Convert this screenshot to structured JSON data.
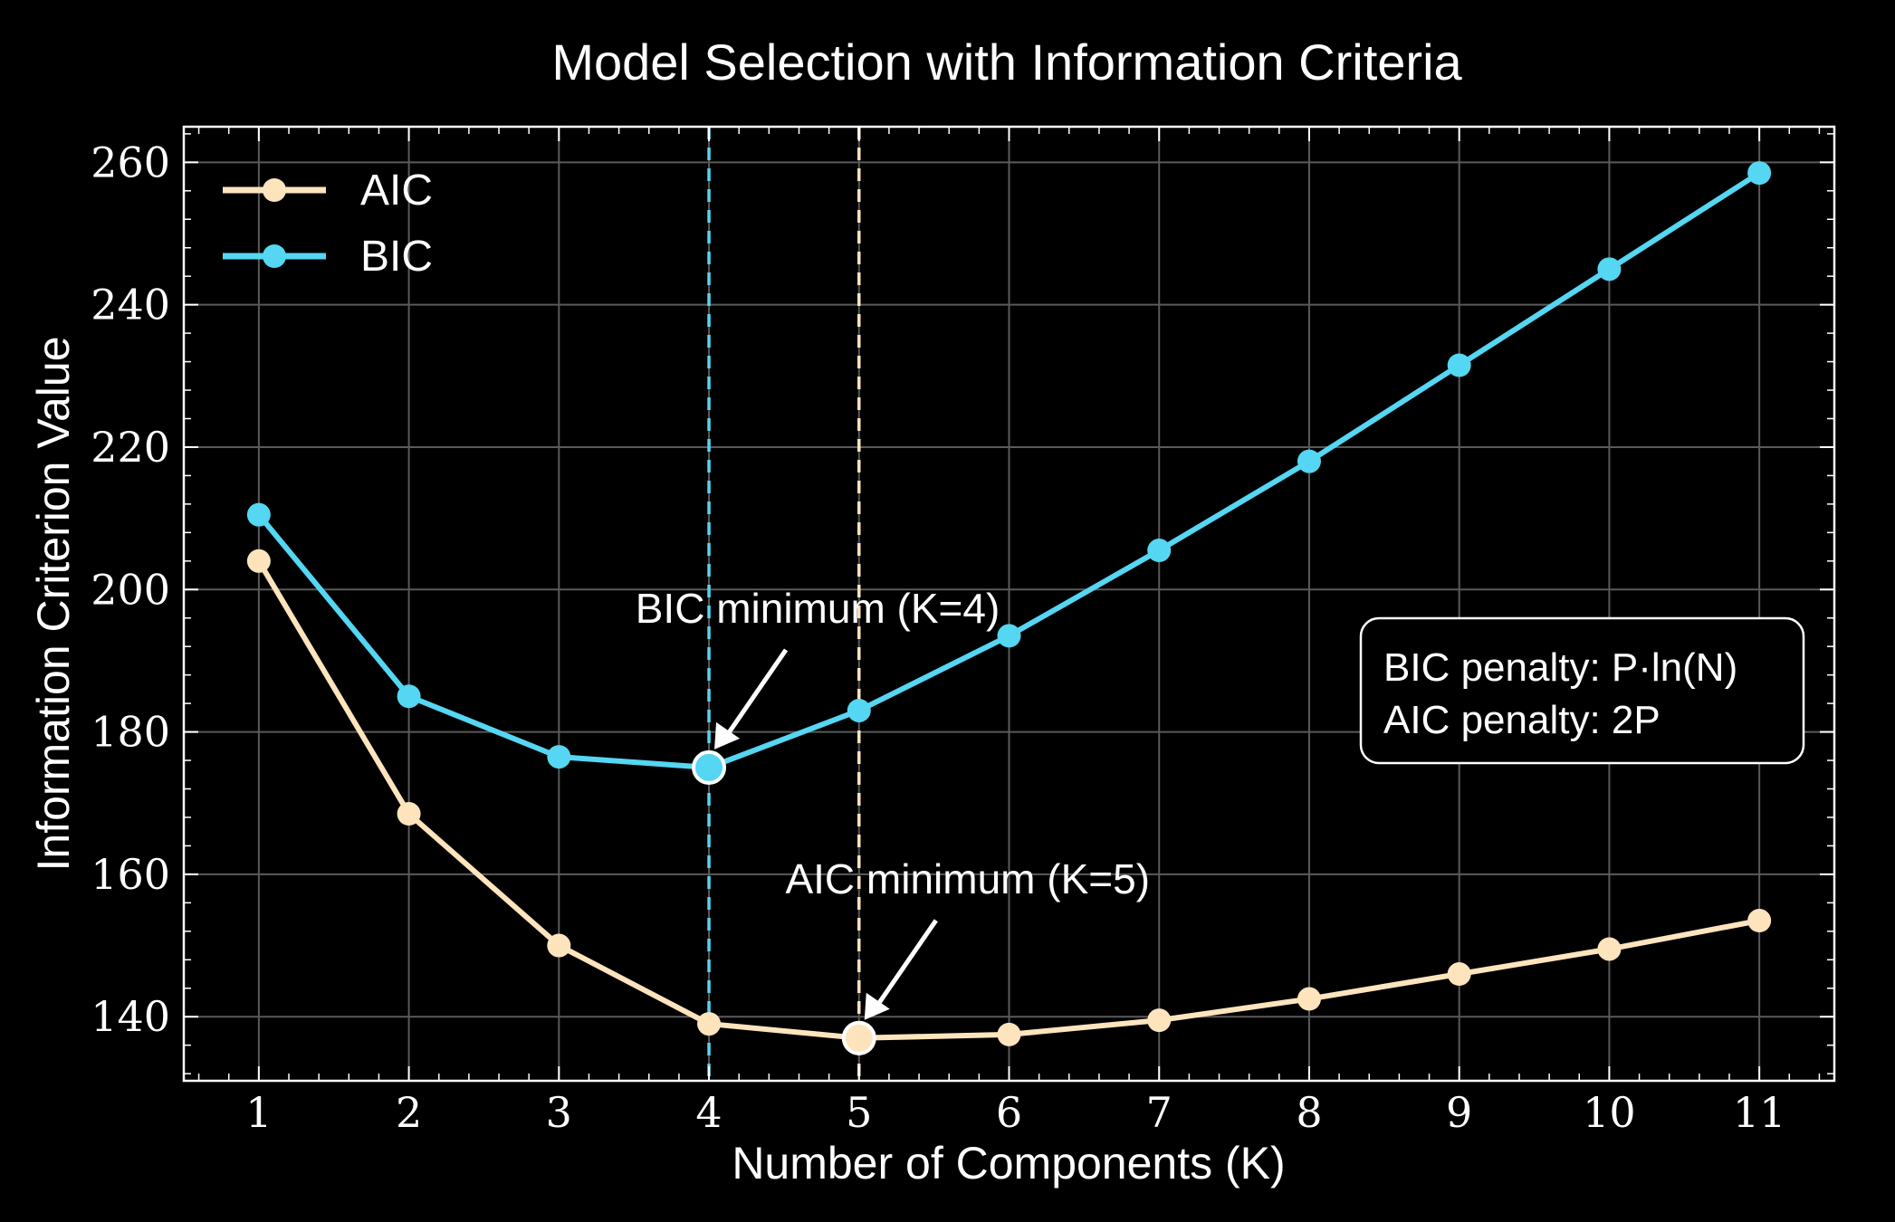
{
  "chart_data": {
    "type": "line",
    "title": "Model Selection with Information Criteria",
    "xlabel": "Number of Components (K)",
    "ylabel": "Information Criterion Value",
    "x": [
      1,
      2,
      3,
      4,
      5,
      6,
      7,
      8,
      9,
      10,
      11
    ],
    "x_tick_labels": [
      "1",
      "2",
      "3",
      "4",
      "5",
      "6",
      "7",
      "8",
      "9",
      "10",
      "11"
    ],
    "y_ticks": [
      140,
      160,
      180,
      200,
      220,
      240,
      260
    ],
    "y_tick_labels": [
      "140",
      "160",
      "180",
      "200",
      "220",
      "240",
      "260"
    ],
    "xlim": [
      0.5,
      11.5
    ],
    "ylim": [
      131,
      265
    ],
    "grid": true,
    "legend_position": "top-left",
    "series": [
      {
        "name": "AIC",
        "color": "#fde4bd",
        "values": [
          204,
          168.5,
          150,
          139,
          137,
          137.5,
          139.5,
          142.5,
          146,
          149.5,
          153.5
        ]
      },
      {
        "name": "BIC",
        "color": "#55d6f2",
        "values": [
          210.5,
          185,
          176.5,
          175,
          183,
          193.5,
          205.5,
          218,
          231.5,
          245,
          258.5
        ]
      }
    ],
    "annotations": [
      {
        "series": "BIC",
        "x": 4,
        "y": 175,
        "text": "BIC minimum (K=4)"
      },
      {
        "series": "AIC",
        "x": 5,
        "y": 137,
        "text": "AIC minimum (K=5)"
      }
    ],
    "minimum_lines": [
      {
        "series": "BIC",
        "x": 4
      },
      {
        "series": "AIC",
        "x": 5
      }
    ],
    "info_box": {
      "lines": [
        "BIC penalty: P·ln(N)",
        "AIC penalty: 2P"
      ]
    },
    "colors": {
      "background": "#000000",
      "foreground": "#ffffff",
      "grid": "#5a5a5a"
    }
  }
}
